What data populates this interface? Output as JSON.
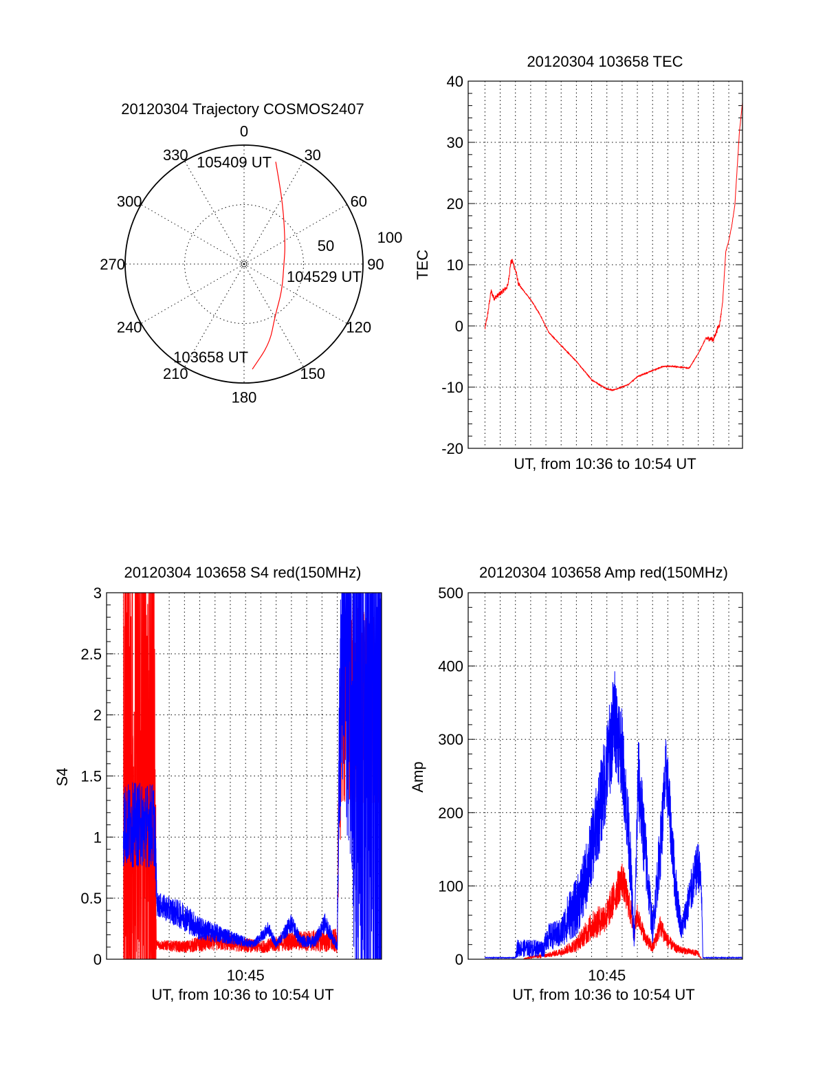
{
  "chart_data": [
    {
      "type": "polar",
      "title": "20120304 Trajectory COSMOS2407",
      "angle_labels": [
        "0",
        "30",
        "60",
        "90",
        "120",
        "150",
        "180",
        "210",
        "240",
        "270",
        "300",
        "330"
      ],
      "radial_labels": [
        "50",
        "100"
      ],
      "rlim": [
        0,
        100
      ],
      "series": [
        {
          "name": "trajectory",
          "color": "#ff0000",
          "points": [
            [
              175.5,
              88.7
            ],
            [
              162,
              70
            ],
            [
              149.4,
              51
            ],
            [
              125,
              39
            ],
            [
              90,
              33.5
            ],
            [
              65.8,
              38
            ],
            [
              33,
              60
            ],
            [
              17.2,
              90
            ]
          ]
        }
      ],
      "annotations": [
        {
          "text": "103658 UT",
          "at": [
            175.5,
            88.7
          ]
        },
        {
          "text": "104529 UT",
          "at": [
            90,
            33.5
          ]
        },
        {
          "text": "105409 UT",
          "at": [
            17.2,
            90
          ]
        }
      ]
    },
    {
      "type": "line",
      "title": "20120304 103658 TEC",
      "xlabel": "UT, from 10:36 to 10:54 UT",
      "ylabel": "TEC",
      "x_units": "minutes after 10:36:58 UT",
      "xlim": [
        -1.1,
        16.9
      ],
      "ylim": [
        -20,
        40
      ],
      "yticks": [
        "-20",
        "-10",
        "0",
        "10",
        "20",
        "30",
        "40"
      ],
      "grid": true,
      "series": [
        {
          "name": "TEC",
          "color": "#ff0000",
          "points": [
            [
              0,
              -0.5
            ],
            [
              0.18,
              1.9
            ],
            [
              0.4,
              5.7
            ],
            [
              0.6,
              4.5
            ],
            [
              1,
              5.3
            ],
            [
              1.4,
              6.2
            ],
            [
              1.5,
              6.6
            ],
            [
              1.7,
              10.4
            ],
            [
              1.8,
              10.6
            ],
            [
              2.05,
              8.7
            ],
            [
              2.2,
              6.8
            ],
            [
              3,
              4.3
            ],
            [
              3.6,
              1.9
            ],
            [
              4.2,
              -1.1
            ],
            [
              5,
              -3.2
            ],
            [
              6,
              -5.8
            ],
            [
              7,
              -8.8
            ],
            [
              8,
              -10.3
            ],
            [
              8.4,
              -10.5
            ],
            [
              9.4,
              -9.6
            ],
            [
              10,
              -8.3
            ],
            [
              11,
              -7.3
            ],
            [
              11.7,
              -6.6
            ],
            [
              12.4,
              -6.6
            ],
            [
              13.4,
              -6.9
            ],
            [
              14,
              -4.5
            ],
            [
              14.5,
              -2.0
            ],
            [
              15,
              -2.2
            ],
            [
              15.3,
              -0.2
            ],
            [
              15.4,
              0.2
            ],
            [
              15.6,
              4
            ],
            [
              15.8,
              12.1
            ],
            [
              16,
              13.9
            ],
            [
              16.2,
              16.4
            ],
            [
              16.4,
              19.8
            ],
            [
              16.7,
              31.8
            ],
            [
              16.9,
              36.5
            ]
          ],
          "noise": 0.4
        }
      ]
    },
    {
      "type": "line",
      "title": "20120304 103658 S4 red(150MHz)",
      "xlabel": "UT, from 10:36 to 10:54 UT",
      "ylabel": "S4",
      "x_units": "minutes after 10:36:58 UT",
      "xlim": [
        -1.1,
        16.9
      ],
      "ylim": [
        0,
        3
      ],
      "yticks": [
        "0",
        "0.5",
        "1",
        "1.5",
        "2",
        "2.5",
        "3"
      ],
      "xtick_labels": [
        {
          "t": 8,
          "label": "10:45"
        }
      ],
      "grid": true,
      "series": [
        {
          "name": "red",
          "color": "#ff0000",
          "envelope": [
            [
              0,
              1.5,
              3
            ],
            [
              2.05,
              1.5,
              3
            ],
            [
              2.15,
              0.12,
              0.04
            ],
            [
              4,
              0.1,
              0.05
            ],
            [
              6,
              0.15,
              0.08
            ],
            [
              9,
              0.1,
              0.05
            ],
            [
              11,
              0.15,
              0.08
            ],
            [
              14,
              0.15,
              0.1
            ],
            [
              14.1,
              1.2,
              0.5
            ],
            [
              14.3,
              2.1,
              0.9
            ],
            [
              16.9,
              2.0,
              0.8
            ]
          ]
        },
        {
          "name": "blue",
          "color": "#0000ff",
          "envelope": [
            [
              0,
              1.1,
              0.35
            ],
            [
              2.05,
              1.1,
              0.35
            ],
            [
              2.2,
              0.45,
              0.1
            ],
            [
              4,
              0.35,
              0.12
            ],
            [
              5,
              0.25,
              0.1
            ],
            [
              7,
              0.18,
              0.06
            ],
            [
              8.5,
              0.12,
              0.03
            ],
            [
              9.5,
              0.25,
              0.06
            ],
            [
              10,
              0.12,
              0.03
            ],
            [
              11,
              0.3,
              0.08
            ],
            [
              11.6,
              0.15,
              0.05
            ],
            [
              12.5,
              0.14,
              0.05
            ],
            [
              13.2,
              0.3,
              0.08
            ],
            [
              14,
              0.1,
              0.03
            ],
            [
              14.1,
              1.5,
              0.6
            ],
            [
              14.3,
              2.5,
              1.2
            ],
            [
              15,
              2.5,
              1.8
            ],
            [
              15.2,
              1.5,
              3
            ],
            [
              16.9,
              1.5,
              3
            ]
          ]
        }
      ]
    },
    {
      "type": "line",
      "title": "20120304 103658 Amp red(150MHz)",
      "xlabel": "UT, from 10:36 to 10:54 UT",
      "ylabel": "Amp",
      "x_units": "minutes after 10:36:58 UT",
      "xlim": [
        -1.1,
        16.9
      ],
      "ylim": [
        0,
        500
      ],
      "yticks": [
        "0",
        "100",
        "200",
        "300",
        "400",
        "500"
      ],
      "xtick_labels": [
        {
          "t": 8,
          "label": "10:45"
        }
      ],
      "grid": true,
      "series": [
        {
          "name": "red",
          "color": "#ff0000",
          "envelope": [
            [
              0,
              0,
              0
            ],
            [
              2.5,
              0,
              0
            ],
            [
              3,
              3,
              2
            ],
            [
              4,
              5,
              3
            ],
            [
              5,
              10,
              5
            ],
            [
              6,
              20,
              10
            ],
            [
              7,
              45,
              20
            ],
            [
              8,
              60,
              22
            ],
            [
              8.5,
              85,
              25
            ],
            [
              9,
              110,
              25
            ],
            [
              9.5,
              70,
              20
            ],
            [
              9.8,
              40,
              15
            ],
            [
              10,
              60,
              15
            ],
            [
              10.5,
              30,
              10
            ],
            [
              11,
              15,
              8
            ],
            [
              11.5,
              45,
              15
            ],
            [
              12,
              25,
              10
            ],
            [
              12.5,
              15,
              6
            ],
            [
              13,
              12,
              5
            ],
            [
              14,
              8,
              4
            ],
            [
              14.2,
              0,
              0
            ],
            [
              16.9,
              0,
              0
            ]
          ]
        },
        {
          "name": "blue",
          "color": "#0000ff",
          "envelope": [
            [
              0,
              2,
              0.5
            ],
            [
              2,
              2,
              0.5
            ],
            [
              2.1,
              15,
              12
            ],
            [
              3.9,
              15,
              12
            ],
            [
              4,
              30,
              18
            ],
            [
              5,
              35,
              20
            ],
            [
              5.5,
              60,
              35
            ],
            [
              6,
              70,
              40
            ],
            [
              6.5,
              100,
              45
            ],
            [
              7,
              150,
              50
            ],
            [
              7.5,
              200,
              60
            ],
            [
              8,
              260,
              65
            ],
            [
              8.5,
              330,
              70
            ],
            [
              9,
              280,
              60
            ],
            [
              9.5,
              150,
              50
            ],
            [
              9.8,
              20,
              12
            ],
            [
              10.05,
              250,
              60
            ],
            [
              10.5,
              150,
              50
            ],
            [
              11,
              40,
              20
            ],
            [
              11.5,
              150,
              45
            ],
            [
              11.9,
              260,
              50
            ],
            [
              12.5,
              100,
              35
            ],
            [
              12.9,
              40,
              15
            ],
            [
              13.5,
              90,
              30
            ],
            [
              14,
              130,
              35
            ],
            [
              14.2,
              100,
              25
            ],
            [
              14.3,
              2,
              0.5
            ],
            [
              16.9,
              2,
              0.5
            ]
          ]
        }
      ]
    }
  ]
}
